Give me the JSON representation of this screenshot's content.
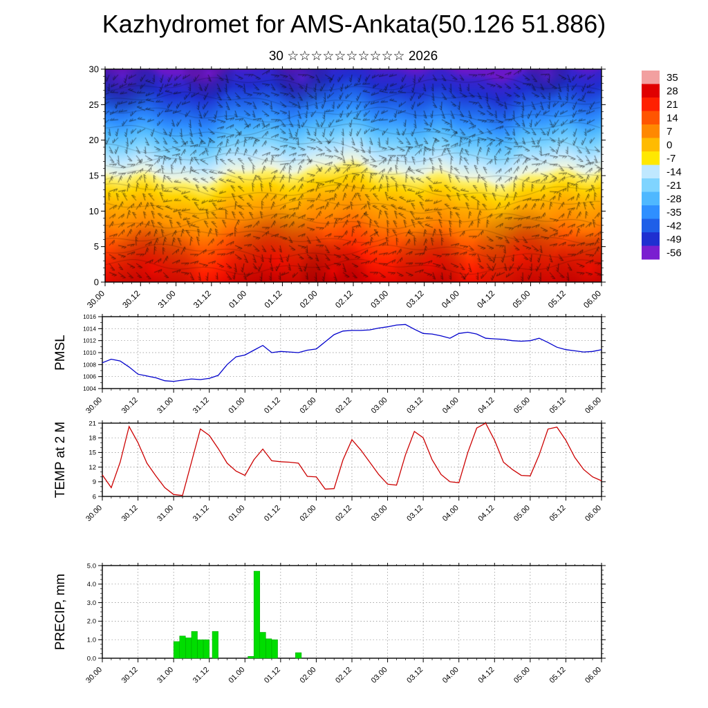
{
  "page": {
    "title": "Kazhydromet for AMS-Ankata(50.126 51.886)",
    "subtitle": "30 ☆☆☆☆☆☆☆☆☆☆ 2026"
  },
  "time_axis": {
    "labels": [
      "30.00",
      "30.12",
      "31.00",
      "31.12",
      "01.00",
      "01.12",
      "02.00",
      "02.12",
      "03.00",
      "03.12",
      "04.00",
      "04.12",
      "05.00",
      "05.12",
      "06.00"
    ]
  },
  "chart_data": [
    {
      "type": "heatmap",
      "name": "wind-temperature-height-cross-section",
      "title": "30 ☆☆☆☆☆☆☆☆☆☆ 2026",
      "x_labels": [
        "30.00",
        "30.12",
        "31.00",
        "31.12",
        "01.00",
        "01.12",
        "02.00",
        "02.12",
        "03.00",
        "03.12",
        "04.00",
        "04.12",
        "05.00",
        "05.12",
        "06.00"
      ],
      "ylim": [
        0,
        30
      ],
      "yticks": [
        0,
        5,
        10,
        15,
        20,
        25,
        30
      ],
      "overlay": "wind-barbs",
      "colorbar_ticks": [
        35,
        28,
        21,
        14,
        7,
        0,
        -7,
        -14,
        -21,
        -28,
        -35,
        -42,
        -49,
        -56
      ],
      "colorbar_colors": [
        "#f2a0a0",
        "#e00000",
        "#ff2000",
        "#ff5500",
        "#ff8800",
        "#ffbb00",
        "#ffe800",
        "#bfe8ff",
        "#7fd4ff",
        "#4fb8ff",
        "#2f8fff",
        "#1f5fe8",
        "#1f2fd0",
        "#7a1fd0"
      ],
      "profile_stops": [
        [
          0.0,
          "#6a18c8"
        ],
        [
          0.04,
          "#3a22cc"
        ],
        [
          0.1,
          "#1f2fd0"
        ],
        [
          0.17,
          "#1f5fe8"
        ],
        [
          0.24,
          "#2f8fff"
        ],
        [
          0.3,
          "#4fb8ff"
        ],
        [
          0.36,
          "#7fd4ff"
        ],
        [
          0.42,
          "#bfe8ff"
        ],
        [
          0.475,
          "#eef6e0"
        ],
        [
          0.505,
          "#fdf06a"
        ],
        [
          0.56,
          "#ffd400"
        ],
        [
          0.63,
          "#ffaa00"
        ],
        [
          0.71,
          "#ff8800"
        ],
        [
          0.79,
          "#ff5500"
        ],
        [
          0.89,
          "#ff2000"
        ],
        [
          1.0,
          "#dd0000"
        ]
      ]
    },
    {
      "type": "line",
      "name": "pmsl",
      "ylabel": "PMSL",
      "ylim": [
        1004,
        1016
      ],
      "yticks": [
        1004,
        1006,
        1008,
        1010,
        1012,
        1014,
        1016
      ],
      "x_step_hours": 3,
      "color": "#0000cc",
      "values": [
        1008.3,
        1008.9,
        1008.6,
        1007.6,
        1006.4,
        1006.1,
        1005.8,
        1005.3,
        1005.2,
        1005.4,
        1005.6,
        1005.5,
        1005.7,
        1006.2,
        1008.0,
        1009.3,
        1009.6,
        1010.4,
        1011.2,
        1010.0,
        1010.2,
        1010.1,
        1010.0,
        1010.4,
        1010.6,
        1011.8,
        1013.0,
        1013.6,
        1013.7,
        1013.7,
        1013.8,
        1014.1,
        1014.3,
        1014.6,
        1014.7,
        1013.9,
        1013.2,
        1013.1,
        1012.8,
        1012.4,
        1013.2,
        1013.4,
        1013.1,
        1012.4,
        1012.3,
        1012.2,
        1012.0,
        1011.9,
        1012.0,
        1012.4,
        1011.7,
        1010.9,
        1010.5,
        1010.3,
        1010.1,
        1010.2,
        1010.5
      ]
    },
    {
      "type": "line",
      "name": "temp-2m",
      "ylabel": "TEMP at 2 M",
      "ylim": [
        6,
        21
      ],
      "yticks": [
        6,
        9,
        12,
        15,
        18,
        21
      ],
      "x_step_hours": 3,
      "color": "#cc0000",
      "values": [
        10.4,
        7.8,
        13.0,
        20.3,
        17.0,
        12.8,
        10.2,
        7.8,
        6.4,
        6.2,
        13.0,
        19.8,
        18.5,
        15.8,
        12.8,
        11.2,
        10.3,
        13.5,
        15.7,
        13.3,
        13.1,
        13.0,
        12.8,
        10.1,
        10.0,
        7.5,
        7.6,
        13.5,
        17.6,
        15.5,
        13.0,
        10.5,
        8.5,
        8.3,
        14.5,
        19.3,
        18.0,
        13.5,
        10.5,
        9.0,
        8.8,
        15.0,
        20.0,
        21.0,
        17.5,
        13.0,
        11.5,
        10.3,
        10.2,
        14.5,
        19.8,
        20.2,
        17.5,
        14.0,
        11.5,
        10.0,
        9.2
      ]
    },
    {
      "type": "bar",
      "name": "precip",
      "ylabel": "PRECIP, mm",
      "ylim": [
        0,
        5
      ],
      "yticks": [
        0,
        1,
        2,
        3,
        4,
        5
      ],
      "ytick_labels": [
        "0.0",
        "1.0",
        "2.0",
        "3.0",
        "4.0",
        "5.0"
      ],
      "color": "#00dd00",
      "bar_width_hours": 2,
      "bars": [
        [
          25,
          0.9
        ],
        [
          27,
          1.2
        ],
        [
          29,
          1.1
        ],
        [
          31,
          1.45
        ],
        [
          33,
          1.0
        ],
        [
          35,
          1.0
        ],
        [
          38,
          1.45
        ],
        [
          50,
          0.1
        ],
        [
          52,
          4.7
        ],
        [
          54,
          1.4
        ],
        [
          56,
          1.05
        ],
        [
          58,
          1.0
        ],
        [
          66,
          0.3
        ]
      ]
    }
  ]
}
